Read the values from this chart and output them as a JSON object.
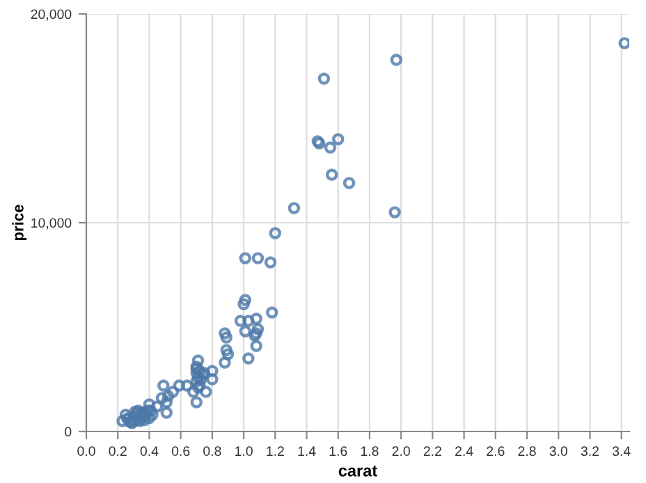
{
  "chart_data": {
    "type": "scatter",
    "xlabel": "carat",
    "ylabel": "price",
    "marker": "circle",
    "grid": true,
    "xlim": [
      0,
      3.45
    ],
    "ylim": [
      0,
      20000
    ],
    "xticks": [
      {
        "value": 0,
        "label": "0.0"
      },
      {
        "value": 0.2,
        "label": "0.2"
      },
      {
        "value": 0.4,
        "label": "0.4"
      },
      {
        "value": 0.6,
        "label": "0.6"
      },
      {
        "value": 0.8,
        "label": "0.8"
      },
      {
        "value": 1,
        "label": "1.0"
      },
      {
        "value": 1.2,
        "label": "1.2"
      },
      {
        "value": 1.4,
        "label": "1.4"
      },
      {
        "value": 1.6,
        "label": "1.6"
      },
      {
        "value": 1.8,
        "label": "1.8"
      },
      {
        "value": 2,
        "label": "2.0"
      },
      {
        "value": 2.2,
        "label": "2.2"
      },
      {
        "value": 2.4,
        "label": "2.4"
      },
      {
        "value": 2.6,
        "label": "2.6"
      },
      {
        "value": 2.8,
        "label": "2.8"
      },
      {
        "value": 3,
        "label": "3.0"
      },
      {
        "value": 3.2,
        "label": "3.2"
      },
      {
        "value": 3.4,
        "label": "3.4"
      }
    ],
    "yticks": [
      0,
      {
        "value": 10000,
        "label": "10,000"
      },
      {
        "value": 20000,
        "label": "20,000"
      }
    ],
    "series": [
      {
        "color": "#4c78a8",
        "x": [
          1.97,
          3.42,
          1.51,
          1.47,
          1.48,
          1.6,
          1.55,
          1.56,
          1.67,
          1.32,
          1.96,
          1.2,
          1.01,
          1.09,
          1.17,
          1.0,
          1.01,
          1.18,
          0.98,
          1.03,
          1.08,
          1.09,
          1.07,
          1.08,
          1.01,
          1.08,
          1.03,
          0.88,
          0.89,
          0.89,
          0.9,
          0.88,
          0.71,
          0.7,
          0.8,
          0.75,
          0.8,
          0.76,
          0.68,
          0.7,
          0.64,
          0.59,
          0.49,
          0.55,
          0.52,
          0.51,
          0.48,
          0.51,
          0.45,
          0.4,
          0.7,
          0.71,
          0.72,
          0.7,
          0.71,
          0.72,
          0.73,
          0.7,
          0.74,
          0.23,
          0.25,
          0.26,
          0.28,
          0.29,
          0.3,
          0.31,
          0.32,
          0.33,
          0.34,
          0.35,
          0.36,
          0.37,
          0.38,
          0.39,
          0.4,
          0.41,
          0.42,
          0.31,
          0.27,
          0.33,
          0.36,
          0.3
        ],
        "values": [
          17800,
          18600,
          16900,
          13900,
          13800,
          14000,
          13600,
          12300,
          11900,
          10700,
          10500,
          9500,
          8300,
          8300,
          8100,
          6100,
          6300,
          5700,
          5300,
          5300,
          5400,
          4900,
          4600,
          4700,
          4800,
          4100,
          3500,
          4700,
          4500,
          3900,
          3700,
          3300,
          3400,
          3100,
          2900,
          2800,
          2500,
          1900,
          1900,
          1400,
          2200,
          2200,
          2200,
          1900,
          1700,
          1400,
          1600,
          900,
          1200,
          1300,
          2400,
          2600,
          2200,
          2800,
          2100,
          2900,
          2500,
          3000,
          2700,
          500,
          800,
          600,
          450,
          400,
          700,
          550,
          850,
          600,
          500,
          900,
          700,
          550,
          800,
          1000,
          650,
          1000,
          800,
          950,
          650,
          1000,
          900,
          500
        ]
      }
    ]
  }
}
